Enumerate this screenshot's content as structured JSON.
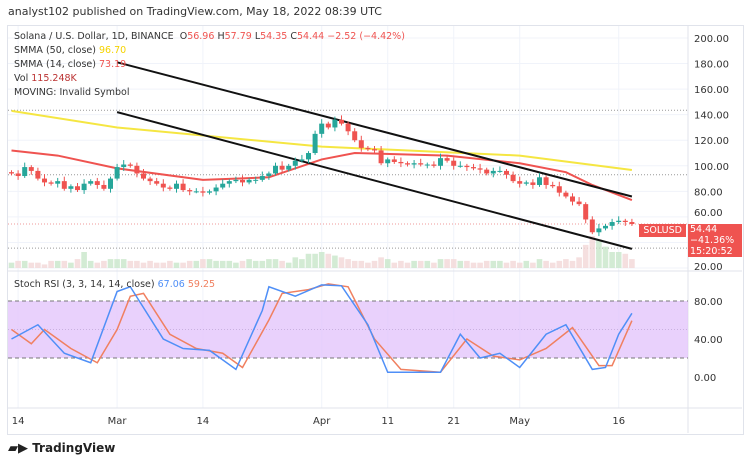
{
  "header": {
    "published": "analyst102 published on TradingView.com, May 18, 2022 08:39 UTC"
  },
  "legend": {
    "symbol": "Solana / U.S. Dollar, 1D, BINANCE",
    "o_label": "O",
    "o": "56.96",
    "h_label": "H",
    "h": "57.79",
    "l_label": "L",
    "l": "54.35",
    "c_label": "C",
    "c": "54.44",
    "change": "−2.52 (−4.42%)",
    "smma50_label": "SMMA (50, close)",
    "smma50": "96.70",
    "smma14_label": "SMMA (14, close)",
    "smma14": "73.19",
    "vol_label": "Vol",
    "vol": "115.248K",
    "moving": "MOVING: Invalid Symbol",
    "rsi_label": "Stoch RSI (3, 3, 14, 14, close)",
    "rsi_k": "67.06",
    "rsi_d": "59.25"
  },
  "price_tag": {
    "symbol": "SOLUSD",
    "price": "54.44",
    "change": "−41.36%",
    "countdown": "15:20:52"
  },
  "footer": {
    "brand": "TradingView"
  },
  "colors": {
    "up": "#26a69a",
    "down": "#ef5350",
    "smma50": "#f5e642",
    "smma14": "#ef5350",
    "rsi_k": "#4f8ff7",
    "rsi_d": "#f08060",
    "rsi_band": "#e3c6fb"
  },
  "chart_data": [
    {
      "type": "candlestick",
      "title": "Solana / U.S. Dollar, 1D, BINANCE",
      "start_date": "2022-02-13",
      "y_ticks": [
        "200.00",
        "180.00",
        "160.00",
        "140.00",
        "120.00",
        "100.00",
        "80.00",
        "60.00",
        "20.00"
      ],
      "ylim": [
        20,
        200
      ],
      "x_ticks": [
        {
          "label": "14",
          "date": 1
        },
        {
          "label": "Mar",
          "date": 16
        },
        {
          "label": "14",
          "date": 29
        },
        {
          "label": "Apr",
          "date": 47
        },
        {
          "label": "11",
          "date": 57
        },
        {
          "label": "21",
          "date": 67
        },
        {
          "label": "May",
          "date": 77
        },
        {
          "label": "16",
          "date": 92
        }
      ],
      "closes": [
        94,
        92,
        99,
        96,
        90,
        87,
        86,
        88,
        82,
        84,
        81,
        86,
        88,
        85,
        82,
        90,
        99,
        101,
        100,
        94,
        90,
        88,
        86,
        83,
        82,
        86,
        81,
        80,
        80,
        79,
        80,
        83,
        86,
        88,
        89,
        87,
        89,
        89,
        92,
        94,
        100,
        97,
        100,
        104,
        105,
        110,
        125,
        133,
        130,
        136,
        133,
        127,
        120,
        114,
        113,
        112,
        102,
        105,
        103,
        102,
        101,
        102,
        101,
        101,
        100,
        106,
        104,
        100,
        100,
        99,
        98,
        97,
        94,
        96,
        96,
        93,
        88,
        86,
        87,
        85,
        91,
        85,
        84,
        79,
        76,
        72,
        70,
        58,
        48,
        51,
        53,
        56,
        57,
        56,
        54.44
      ],
      "volume": [
        3,
        4,
        4,
        3,
        3,
        2,
        4,
        4,
        4,
        3,
        5,
        9,
        4,
        3,
        4,
        5,
        5,
        5,
        4,
        4,
        3,
        4,
        3,
        3,
        4,
        3,
        3,
        4,
        4,
        5,
        5,
        4,
        4,
        4,
        3,
        4,
        5,
        4,
        4,
        5,
        5,
        4,
        3,
        6,
        5,
        8,
        8,
        9,
        8,
        7,
        6,
        5,
        4,
        4,
        3,
        4,
        6,
        5,
        3,
        4,
        3,
        4,
        4,
        4,
        3,
        5,
        5,
        5,
        4,
        4,
        3,
        3,
        4,
        4,
        4,
        3,
        4,
        3,
        4,
        3,
        5,
        4,
        3,
        4,
        5,
        4,
        6,
        13,
        18,
        16,
        12,
        9,
        9,
        8,
        5
      ],
      "smma50": [
        [
          0,
          143
        ],
        [
          16,
          130
        ],
        [
          47,
          115
        ],
        [
          77,
          108
        ],
        [
          94,
          96.7
        ]
      ],
      "smma14": [
        [
          0,
          112
        ],
        [
          7,
          108
        ],
        [
          16,
          98
        ],
        [
          29,
          89
        ],
        [
          39,
          91
        ],
        [
          47,
          105
        ],
        [
          52,
          110
        ],
        [
          66,
          108
        ],
        [
          77,
          102
        ],
        [
          84,
          95
        ],
        [
          88,
          85
        ],
        [
          94,
          73.19
        ]
      ],
      "channel": [
        {
          "from": [
            16,
            181
          ],
          "to": [
            94,
            76
          ]
        },
        {
          "from": [
            16,
            142
          ],
          "to": [
            94,
            35
          ]
        }
      ],
      "levels": [
        143.5,
        93,
        54.44,
        35.6
      ]
    },
    {
      "type": "line",
      "title": "Stoch RSI (3, 3, 14, 14, close)",
      "y_ticks": [
        "80.00",
        "40.00",
        "0.00"
      ],
      "band": [
        20,
        80
      ],
      "ylim": [
        0,
        100
      ],
      "series": [
        {
          "name": "K",
          "values": [
            [
              0,
              40
            ],
            [
              4,
              55
            ],
            [
              8,
              25
            ],
            [
              12,
              15
            ],
            [
              16,
              90
            ],
            [
              18,
              95
            ],
            [
              23,
              40
            ],
            [
              26,
              30
            ],
            [
              30,
              28
            ],
            [
              34,
              8
            ],
            [
              38,
              70
            ],
            [
              39,
              95
            ],
            [
              43,
              85
            ],
            [
              47,
              97
            ],
            [
              50,
              96
            ],
            [
              54,
              55
            ],
            [
              57,
              5
            ],
            [
              60,
              5
            ],
            [
              65,
              5
            ],
            [
              68,
              45
            ],
            [
              71,
              20
            ],
            [
              74,
              25
            ],
            [
              77,
              10
            ],
            [
              81,
              45
            ],
            [
              84,
              55
            ],
            [
              88,
              8
            ],
            [
              90,
              10
            ],
            [
              92,
              45
            ],
            [
              94,
              67.06
            ]
          ]
        },
        {
          "name": "D",
          "values": [
            [
              0,
              50
            ],
            [
              3,
              35
            ],
            [
              5,
              50
            ],
            [
              9,
              30
            ],
            [
              13,
              15
            ],
            [
              16,
              50
            ],
            [
              18,
              85
            ],
            [
              20,
              88
            ],
            [
              24,
              45
            ],
            [
              28,
              30
            ],
            [
              32,
              25
            ],
            [
              35,
              10
            ],
            [
              39,
              60
            ],
            [
              41,
              88
            ],
            [
              45,
              92
            ],
            [
              48,
              98
            ],
            [
              51,
              95
            ],
            [
              55,
              40
            ],
            [
              59,
              8
            ],
            [
              65,
              5
            ],
            [
              69,
              40
            ],
            [
              73,
              22
            ],
            [
              77,
              18
            ],
            [
              81,
              30
            ],
            [
              85,
              52
            ],
            [
              89,
              12
            ],
            [
              91,
              12
            ],
            [
              94,
              59.25
            ]
          ]
        }
      ]
    }
  ]
}
